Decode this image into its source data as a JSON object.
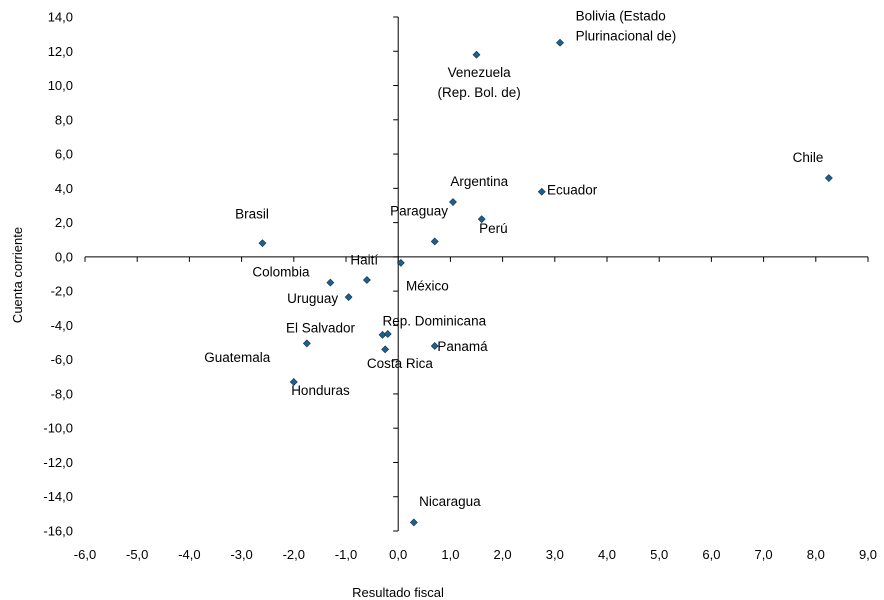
{
  "chart_data": {
    "type": "scatter",
    "xlabel": "Resultado fiscal",
    "ylabel": "Cuenta corriente",
    "xlim": [
      -6,
      9
    ],
    "ylim": [
      -16,
      14
    ],
    "xticks": [
      -6,
      -5,
      -4,
      -3,
      -2,
      -1,
      0,
      1,
      2,
      3,
      4,
      5,
      6,
      7,
      8,
      9
    ],
    "yticks": [
      -16,
      -14,
      -12,
      -10,
      -8,
      -6,
      -4,
      -2,
      0,
      2,
      4,
      6,
      8,
      10,
      12,
      14
    ],
    "xtick_labels": [
      "-6,0",
      "-5,0",
      "-4,0",
      "-3,0",
      "-2,0",
      "-1,0",
      "0,0",
      "1,0",
      "2,0",
      "3,0",
      "4,0",
      "5,0",
      "6,0",
      "7,0",
      "8,0",
      "9,0"
    ],
    "ytick_labels": [
      "-16,0",
      "-14,0",
      "-12,0",
      "-10,0",
      "-8,0",
      "-6,0",
      "-4,0",
      "-2,0",
      "0,0",
      "2,0",
      "4,0",
      "6,0",
      "8,0",
      "10,0",
      "12,0",
      "14,0"
    ],
    "grid": false,
    "marker_color": "#1f5f8b",
    "points": [
      {
        "label": [
          "Bolivia (Estado",
          "Plurinacional de)"
        ],
        "x": 3.1,
        "y": 12.5,
        "anchor": "start",
        "dx": 0.3,
        "dy": 1.3
      },
      {
        "label": [
          "Venezuela",
          "(Rep. Bol. de)"
        ],
        "x": 1.5,
        "y": 11.8,
        "anchor": "middle",
        "dx": 0.05,
        "dy": -1.3
      },
      {
        "label": [
          "Chile"
        ],
        "x": 8.25,
        "y": 4.6,
        "anchor": "middle",
        "dx": -0.4,
        "dy": 0.95
      },
      {
        "label": [
          "Argentina"
        ],
        "x": 1.05,
        "y": 3.2,
        "anchor": "start",
        "dx": -0.05,
        "dy": 0.95
      },
      {
        "label": [
          "Ecuador"
        ],
        "x": 2.75,
        "y": 3.8,
        "anchor": "start",
        "dx": 0.1,
        "dy": -0.15
      },
      {
        "label": [
          "Perú"
        ],
        "x": 1.6,
        "y": 2.2,
        "anchor": "start",
        "dx": -0.05,
        "dy": -0.8
      },
      {
        "label": [
          "Paraguay"
        ],
        "x": 0.7,
        "y": 0.9,
        "anchor": "middle",
        "dx": -0.3,
        "dy": 1.5
      },
      {
        "label": [
          "Brasil"
        ],
        "x": -2.6,
        "y": 0.8,
        "anchor": "middle",
        "dx": -0.2,
        "dy": 1.45
      },
      {
        "label": [
          "México"
        ],
        "x": 0.05,
        "y": -0.35,
        "anchor": "start",
        "dx": 0.1,
        "dy": -1.6
      },
      {
        "label": [
          "Haití"
        ],
        "x": -0.6,
        "y": -1.35,
        "anchor": "middle",
        "dx": -0.05,
        "dy": 0.9
      },
      {
        "label": [
          "Colombia"
        ],
        "x": -1.3,
        "y": -1.5,
        "anchor": "end",
        "dx": -0.4,
        "dy": 0.35
      },
      {
        "label": [
          "Uruguay"
        ],
        "x": -0.95,
        "y": -2.35,
        "anchor": "end",
        "dx": -0.2,
        "dy": -0.35
      },
      {
        "label": [
          "El Salvador"
        ],
        "x": -1.75,
        "y": -5.05,
        "anchor": "start",
        "dx": -0.4,
        "dy": 0.65
      },
      {
        "label": [
          "Rep. Dominicana"
        ],
        "x": -0.3,
        "y": -4.55,
        "anchor": "start",
        "dx": 0.0,
        "dy": 0.55
      },
      {
        "label": [
          "Rep. Dominicana"
        ],
        "x": -0.2,
        "y": -4.5,
        "anchor": "none",
        "dx": 0,
        "dy": 0
      },
      {
        "label": [
          "Panamá"
        ],
        "x": 0.7,
        "y": -5.2,
        "anchor": "start",
        "dx": 0.05,
        "dy": -0.3
      },
      {
        "label": [
          "Costa Rica"
        ],
        "x": -0.25,
        "y": -5.4,
        "anchor": "start",
        "dx": -0.35,
        "dy": -1.1
      },
      {
        "label": [
          "Guatemala"
        ],
        "x": -2.0,
        "y": -7.3,
        "anchor": "end",
        "dx": -0.45,
        "dy": 1.15
      },
      {
        "label": [
          "Honduras"
        ],
        "x": -2.0,
        "y": -7.3,
        "anchor": "start",
        "dx": -0.05,
        "dy": -0.75
      },
      {
        "label": [
          "Nicaragua"
        ],
        "x": 0.3,
        "y": -15.5,
        "anchor": "start",
        "dx": 0.1,
        "dy": 0.95
      }
    ]
  }
}
